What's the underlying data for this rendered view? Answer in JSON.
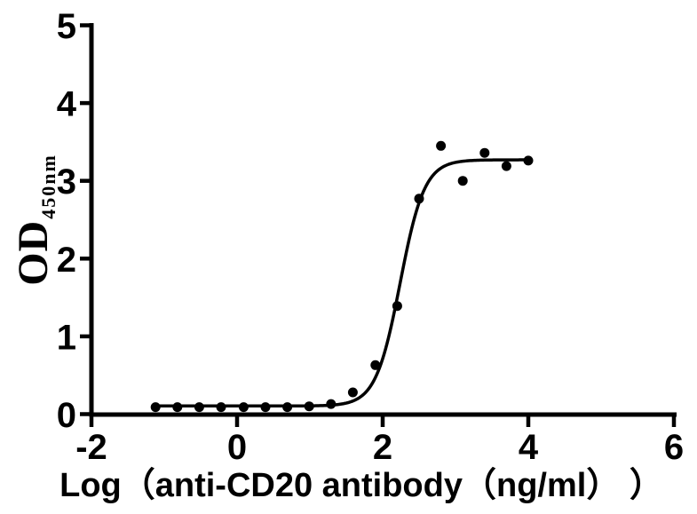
{
  "figure": {
    "background": "#ffffff",
    "axis_color": "#000000"
  },
  "chart_data": {
    "type": "scatter",
    "title": "",
    "xlabel": "Log（anti-CD20 antibody（ng/ml） ）",
    "ylabel_base": "OD",
    "ylabel_sub": "450nm",
    "xlim": [
      -2,
      6
    ],
    "ylim": [
      0,
      5
    ],
    "x_ticks": [
      -2,
      0,
      2,
      4,
      6
    ],
    "y_ticks": [
      0,
      1,
      2,
      3,
      4,
      5
    ],
    "grid": false,
    "legend": "none",
    "marker": {
      "shape": "circle",
      "color": "#000000",
      "radius_px": 5.5
    },
    "curve_color": "#000000",
    "points": [
      {
        "x": -1.12,
        "y": 0.09
      },
      {
        "x": -0.82,
        "y": 0.09
      },
      {
        "x": -0.52,
        "y": 0.09
      },
      {
        "x": -0.22,
        "y": 0.09
      },
      {
        "x": 0.09,
        "y": 0.09
      },
      {
        "x": 0.39,
        "y": 0.09
      },
      {
        "x": 0.69,
        "y": 0.09
      },
      {
        "x": 0.99,
        "y": 0.1
      },
      {
        "x": 1.29,
        "y": 0.13
      },
      {
        "x": 1.59,
        "y": 0.28
      },
      {
        "x": 1.9,
        "y": 0.63
      },
      {
        "x": 2.2,
        "y": 1.39
      },
      {
        "x": 2.5,
        "y": 2.77
      },
      {
        "x": 2.8,
        "y": 3.45
      },
      {
        "x": 3.1,
        "y": 3.0
      },
      {
        "x": 3.4,
        "y": 3.36
      },
      {
        "x": 3.7,
        "y": 3.19
      },
      {
        "x": 4.0,
        "y": 3.26
      }
    ],
    "fit_curve": {
      "model": "four_parameter_logistic",
      "bottom": 0.105,
      "top": 3.27,
      "log_ec50": 2.24,
      "hill_slope": 2.6,
      "x_start": -1.12,
      "x_end": 4.01
    }
  }
}
